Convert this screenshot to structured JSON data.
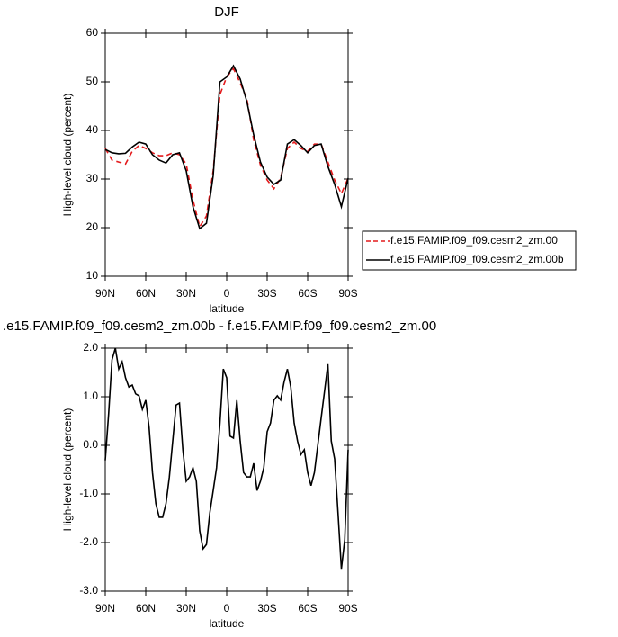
{
  "chart_data": [
    {
      "type": "line",
      "title": "DJF",
      "x_label": "latitude",
      "y_label": "High-level cloud (percent)",
      "x": [
        90,
        85,
        80,
        75,
        70,
        65,
        60,
        55,
        50,
        45,
        40,
        35,
        30,
        25,
        20,
        15,
        10,
        5,
        0,
        -5,
        -10,
        -15,
        -20,
        -25,
        -30,
        -35,
        -40,
        -45,
        -50,
        -55,
        -60,
        -65,
        -70,
        -75,
        -80,
        -85,
        -90
      ],
      "series": [
        {
          "name": "f.e15.FAMIP.f09_f09.cesm2_zm.00",
          "color": "#e41a1c",
          "linestyle": "dashed",
          "values": [
            36.3,
            33.9,
            33.5,
            33.1,
            35.7,
            36.9,
            36.3,
            35.4,
            34.8,
            34.8,
            35.4,
            35,
            33.1,
            25.7,
            20.2,
            22.4,
            31.7,
            47.4,
            51,
            52.7,
            49.8,
            46.5,
            38.1,
            32.9,
            29.8,
            28,
            30.2,
            36.3,
            37.6,
            36.3,
            35.7,
            37.2,
            37.2,
            33.5,
            29.8,
            27,
            30.2
          ]
        },
        {
          "name": "f.e15.FAMIP.f09_f09.cesm2_zm.00b",
          "color": "#000000",
          "linestyle": "solid",
          "values": [
            36.1,
            35.4,
            35.2,
            35.3,
            36.6,
            37.6,
            37.2,
            35,
            33.9,
            33.3,
            35,
            35.4,
            31.7,
            24.3,
            19.8,
            20.9,
            30.7,
            50,
            51,
            53.3,
            50.6,
            45.9,
            39.1,
            33.5,
            30.4,
            28.9,
            29.8,
            37.2,
            38.1,
            36.9,
            35.4,
            36.9,
            37.2,
            32.6,
            28.9,
            24.3,
            30.2
          ]
        }
      ],
      "xlim": [
        90,
        -90
      ],
      "xticks": [
        {
          "value": 90,
          "label": "90N"
        },
        {
          "value": 60,
          "label": "60N"
        },
        {
          "value": 30,
          "label": "30N"
        },
        0,
        {
          "value": -30,
          "label": "30S"
        },
        {
          "value": -60,
          "label": "60S"
        },
        {
          "value": -90,
          "label": "90S"
        }
      ],
      "ylim": [
        10,
        60
      ],
      "yticks": [
        10,
        20,
        30,
        40,
        50,
        60
      ],
      "legend": "right"
    },
    {
      "type": "line",
      "title": ".e15.FAMIP.f09_f09.cesm2_zm.00b - f.e15.FAMIP.f09_f09.cesm2_zm.00",
      "x_label": "latitude",
      "y_label": "High-level cloud (percent)",
      "x": [
        90,
        87.5,
        85,
        82.5,
        80,
        77.5,
        75,
        72.5,
        70,
        67.5,
        65,
        62.5,
        60,
        57.5,
        55,
        52.5,
        50,
        47.5,
        45,
        42.5,
        40,
        37.5,
        35,
        32.5,
        30,
        27.5,
        25,
        22.5,
        20,
        17.5,
        15,
        12.5,
        10,
        7.5,
        5,
        2.5,
        0,
        -2.5,
        -5,
        -7.5,
        -10,
        -12.5,
        -15,
        -17.5,
        -20,
        -22.5,
        -25,
        -27.5,
        -30,
        -32.5,
        -35,
        -37.5,
        -40,
        -42.5,
        -45,
        -47.5,
        -50,
        -52.5,
        -55,
        -57.5,
        -60,
        -62.5,
        -65,
        -67.5,
        -70,
        -72.5,
        -75,
        -77.5,
        -80,
        -82.5,
        -85,
        -87.5,
        -90
      ],
      "series": [
        {
          "color": "#000000",
          "linestyle": "solid",
          "values": [
            -0.31,
            0.65,
            1.76,
            2.0,
            1.57,
            1.72,
            1.39,
            1.2,
            1.24,
            1.06,
            1.02,
            0.74,
            0.93,
            0.37,
            -0.56,
            -1.2,
            -1.48,
            -1.48,
            -1.2,
            -0.65,
            0.09,
            0.83,
            0.87,
            -0.09,
            -0.74,
            -0.65,
            -0.46,
            -0.74,
            -1.76,
            -2.13,
            -2.04,
            -1.39,
            -0.93,
            -0.46,
            0.46,
            1.57,
            1.39,
            0.19,
            0.15,
            0.93,
            0.09,
            -0.56,
            -0.65,
            -0.65,
            -0.37,
            -0.93,
            -0.74,
            -0.46,
            0.28,
            0.46,
            0.93,
            1.02,
            0.93,
            1.3,
            1.57,
            1.2,
            0.46,
            0.09,
            -0.19,
            -0.09,
            -0.56,
            -0.83,
            -0.56,
            0.0,
            0.56,
            1.11,
            1.67,
            0.09,
            -0.28,
            -1.39,
            -2.54,
            -1.94,
            -0.09
          ]
        }
      ],
      "xlim": [
        90,
        -90
      ],
      "xticks": [
        {
          "value": 90,
          "label": "90N"
        },
        {
          "value": 60,
          "label": "60N"
        },
        {
          "value": 30,
          "label": "30N"
        },
        0,
        {
          "value": -30,
          "label": "30S"
        },
        {
          "value": -60,
          "label": "60S"
        },
        {
          "value": -90,
          "label": "90S"
        }
      ],
      "ylim": [
        -3,
        2
      ],
      "yticks": [
        {
          "value": -3,
          "label": "-3.0"
        },
        {
          "value": -2,
          "label": "-2.0"
        },
        {
          "value": -1,
          "label": "-1.0"
        },
        {
          "value": 0,
          "label": "0.0"
        },
        {
          "value": 1,
          "label": "1.0"
        },
        {
          "value": 2,
          "label": "2.0"
        }
      ]
    }
  ]
}
